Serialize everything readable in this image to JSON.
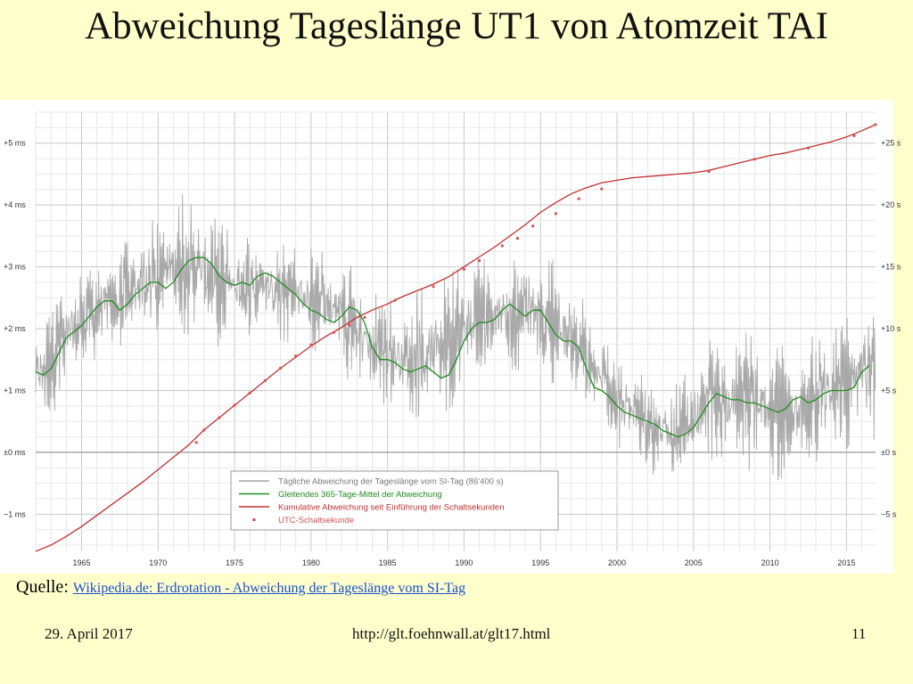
{
  "slide": {
    "title": "Abweichung Tageslänge UT1  von Atomzeit TAI",
    "source_label": "Quelle",
    "source_link": "Wikipedia.de: Erdrotation - Abweichung der Tageslänge vom SI-Tag",
    "footer_date": "29. April 2017",
    "footer_url": "http://glt.foehnwall.at/glt17.html",
    "footer_page": "11"
  },
  "colors": {
    "daily": "#a0a0a0",
    "mean": "#1e8c1e",
    "cumulative": "#c03030",
    "leap": "#d85050",
    "slide_bg": "#ffffcc"
  },
  "chart_data": {
    "type": "line",
    "xlim": [
      1962,
      2016.9
    ],
    "ylim_left": [
      -1.6,
      5.5
    ],
    "ylim_right": [
      -8,
      27.5
    ],
    "left_ticks": [
      {
        "v": 5,
        "label": "+5 ms"
      },
      {
        "v": 4,
        "label": "+4 ms"
      },
      {
        "v": 3,
        "label": "+3 ms"
      },
      {
        "v": 2,
        "label": "+2 ms"
      },
      {
        "v": 1,
        "label": "+1 ms"
      },
      {
        "v": 0,
        "label": "±0 ms"
      },
      {
        "v": -1,
        "label": "−1 ms"
      }
    ],
    "right_ticks": [
      {
        "v": 25,
        "label": "+25 s"
      },
      {
        "v": 20,
        "label": "+20 s"
      },
      {
        "v": 15,
        "label": "+15 s"
      },
      {
        "v": 10,
        "label": "+10 s"
      },
      {
        "v": 5,
        "label": "+5 s"
      },
      {
        "v": 0,
        "label": "±0 s"
      },
      {
        "v": -5,
        "label": "−5 s"
      }
    ],
    "x_ticks": [
      1965,
      1970,
      1975,
      1980,
      1985,
      1990,
      1995,
      2000,
      2005,
      2010,
      2015
    ],
    "grid": true,
    "legend": {
      "placement": "bottom-center",
      "entries": [
        "Tägliche Abweichung der Tageslänge vom SI-Tag (86'400 s)",
        "Gleitendes 365-Tage-Mittel der Abweichung",
        "Kumulative Abweichung seit Einführung der Schaltsekunden",
        "UTC-Schaltsekunde"
      ]
    },
    "series": [
      {
        "name": "Gleitendes 365-Tage-Mittel der Abweichung",
        "axis": "left",
        "x": [
          1962.0,
          1962.5,
          1963.0,
          1963.5,
          1964.0,
          1964.5,
          1965.0,
          1965.5,
          1966.0,
          1966.5,
          1967.0,
          1967.5,
          1968.0,
          1968.5,
          1969.0,
          1969.5,
          1970.0,
          1970.5,
          1971.0,
          1971.5,
          1972.0,
          1972.5,
          1973.0,
          1973.5,
          1974.0,
          1974.5,
          1975.0,
          1975.5,
          1976.0,
          1976.5,
          1977.0,
          1977.5,
          1978.0,
          1978.5,
          1979.0,
          1979.5,
          1980.0,
          1980.5,
          1981.0,
          1981.5,
          1982.0,
          1982.5,
          1983.0,
          1983.5,
          1984.0,
          1984.5,
          1985.0,
          1985.5,
          1986.0,
          1986.5,
          1987.0,
          1987.5,
          1988.0,
          1988.5,
          1989.0,
          1989.5,
          1990.0,
          1990.5,
          1991.0,
          1991.5,
          1992.0,
          1992.5,
          1993.0,
          1993.5,
          1994.0,
          1994.5,
          1995.0,
          1995.5,
          1996.0,
          1996.5,
          1997.0,
          1997.5,
          1998.0,
          1998.5,
          1999.0,
          1999.5,
          2000.0,
          2000.5,
          2001.0,
          2001.5,
          2002.0,
          2002.5,
          2003.0,
          2003.5,
          2004.0,
          2004.5,
          2005.0,
          2005.5,
          2006.0,
          2006.5,
          2007.0,
          2007.5,
          2008.0,
          2008.5,
          2009.0,
          2009.5,
          2010.0,
          2010.5,
          2011.0,
          2011.5,
          2012.0,
          2012.5,
          2013.0,
          2013.5,
          2014.0,
          2014.5,
          2015.0,
          2015.5,
          2016.0,
          2016.5
        ],
        "y": [
          1.3,
          1.25,
          1.35,
          1.6,
          1.85,
          1.95,
          2.05,
          2.2,
          2.35,
          2.45,
          2.45,
          2.3,
          2.4,
          2.55,
          2.65,
          2.75,
          2.75,
          2.65,
          2.75,
          2.95,
          3.1,
          3.15,
          3.15,
          3.05,
          2.85,
          2.75,
          2.7,
          2.75,
          2.7,
          2.85,
          2.9,
          2.85,
          2.75,
          2.65,
          2.55,
          2.4,
          2.3,
          2.25,
          2.15,
          2.1,
          2.2,
          2.35,
          2.3,
          2.1,
          1.7,
          1.5,
          1.5,
          1.45,
          1.35,
          1.3,
          1.35,
          1.4,
          1.3,
          1.2,
          1.25,
          1.5,
          1.8,
          2.0,
          2.1,
          2.1,
          2.15,
          2.3,
          2.4,
          2.3,
          2.2,
          2.3,
          2.3,
          2.1,
          1.9,
          1.8,
          1.8,
          1.7,
          1.35,
          1.05,
          1.0,
          0.9,
          0.75,
          0.65,
          0.6,
          0.55,
          0.5,
          0.45,
          0.35,
          0.3,
          0.25,
          0.3,
          0.4,
          0.6,
          0.8,
          0.95,
          0.9,
          0.85,
          0.85,
          0.8,
          0.8,
          0.75,
          0.7,
          0.65,
          0.7,
          0.85,
          0.9,
          0.8,
          0.85,
          0.95,
          1.0,
          1.0,
          1.0,
          1.05,
          1.3,
          1.4
        ]
      },
      {
        "name": "Kumulative Abweichung seit Einführung der Schaltsekunden",
        "axis": "right",
        "x": [
          1962.0,
          1963.0,
          1964.0,
          1965.0,
          1966.0,
          1967.0,
          1968.0,
          1969.0,
          1970.0,
          1971.0,
          1972.0,
          1973.0,
          1974.0,
          1975.0,
          1976.0,
          1977.0,
          1978.0,
          1979.0,
          1980.0,
          1981.0,
          1982.0,
          1983.0,
          1984.0,
          1985.0,
          1986.0,
          1987.0,
          1988.0,
          1989.0,
          1990.0,
          1991.0,
          1992.0,
          1993.0,
          1994.0,
          1995.0,
          1996.0,
          1997.0,
          1998.0,
          1999.0,
          2000.0,
          2001.0,
          2002.0,
          2003.0,
          2004.0,
          2005.0,
          2006.0,
          2007.0,
          2008.0,
          2009.0,
          2010.0,
          2011.0,
          2012.0,
          2013.0,
          2014.0,
          2015.0,
          2016.0,
          2016.9
        ],
        "y": [
          -8.0,
          -7.5,
          -6.8,
          -6.0,
          -5.1,
          -4.2,
          -3.3,
          -2.4,
          -1.4,
          -0.4,
          0.6,
          1.8,
          2.8,
          3.8,
          4.8,
          5.8,
          6.8,
          7.7,
          8.6,
          9.4,
          10.1,
          10.9,
          11.5,
          12.0,
          12.6,
          13.1,
          13.6,
          14.2,
          15.0,
          15.8,
          16.6,
          17.5,
          18.4,
          19.4,
          20.2,
          20.9,
          21.4,
          21.8,
          22.0,
          22.2,
          22.3,
          22.4,
          22.5,
          22.6,
          22.8,
          23.1,
          23.4,
          23.7,
          24.0,
          24.2,
          24.5,
          24.8,
          25.1,
          25.5,
          26.0,
          26.5
        ]
      },
      {
        "name": "UTC-Schaltsekunde",
        "axis": "right",
        "x": [
          1972.5,
          1973.0,
          1974.0,
          1975.0,
          1976.0,
          1977.0,
          1978.0,
          1979.0,
          1980.0,
          1981.5,
          1982.5,
          1983.5,
          1985.5,
          1988.0,
          1990.0,
          1991.0,
          1992.5,
          1993.5,
          1994.5,
          1996.0,
          1997.5,
          1999.0,
          2006.0,
          2009.0,
          2012.5,
          2015.5,
          2017.0
        ],
        "y": [
          0.8,
          1.8,
          2.8,
          3.8,
          4.8,
          5.8,
          6.8,
          7.8,
          8.7,
          9.7,
          10.3,
          10.9,
          12.3,
          13.4,
          14.8,
          15.5,
          16.7,
          17.3,
          18.3,
          19.3,
          20.5,
          21.3,
          22.7,
          23.7,
          24.6,
          25.6,
          26.5
        ]
      }
    ],
    "daily_envelope": {
      "name": "Tägliche Abweichung der Tageslänge vom SI-Tag (86'400 s)",
      "axis": "left",
      "x": [
        1962,
        1964,
        1966,
        1968,
        1970,
        1972,
        1974,
        1976,
        1978,
        1980,
        1982,
        1984,
        1986,
        1988,
        1990,
        1992,
        1994,
        1996,
        1998,
        2000,
        2002,
        2004,
        2006,
        2008,
        2010,
        2012,
        2014,
        2016
      ],
      "high": [
        2.2,
        2.8,
        3.1,
        3.5,
        3.9,
        4.3,
        3.7,
        3.5,
        3.6,
        3.3,
        3.2,
        2.7,
        2.4,
        2.8,
        3.2,
        3.1,
        3.3,
        3.1,
        2.4,
        1.6,
        1.2,
        1.1,
        1.8,
        2.0,
        1.7,
        1.8,
        2.0,
        2.4
      ],
      "low": [
        0.3,
        0.9,
        1.5,
        1.6,
        2.0,
        1.9,
        1.7,
        1.9,
        1.8,
        1.7,
        1.3,
        0.7,
        0.6,
        0.5,
        0.9,
        1.4,
        1.3,
        1.1,
        0.6,
        0.1,
        -0.3,
        -0.6,
        -0.2,
        -0.2,
        -0.5,
        -0.3,
        -0.1,
        0.2
      ]
    }
  }
}
